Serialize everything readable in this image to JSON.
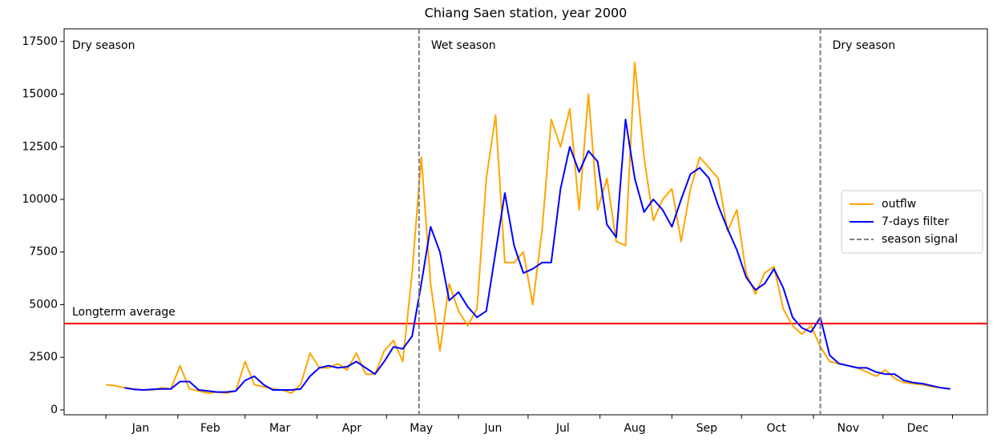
{
  "chart_data": {
    "type": "line",
    "title": "Chiang Saen station, year 2000",
    "x": [
      1,
      5,
      9,
      13,
      17,
      21,
      25,
      29,
      33,
      37,
      41,
      45,
      49,
      53,
      57,
      61,
      65,
      69,
      73,
      77,
      81,
      85,
      89,
      93,
      97,
      101,
      105,
      109,
      113,
      117,
      121,
      125,
      129,
      133,
      137,
      141,
      145,
      149,
      153,
      157,
      161,
      165,
      169,
      173,
      177,
      181,
      185,
      189,
      193,
      197,
      201,
      205,
      209,
      213,
      217,
      221,
      225,
      229,
      233,
      237,
      241,
      245,
      249,
      253,
      257,
      261,
      265,
      269,
      273,
      277,
      281,
      285,
      289,
      293,
      297,
      301,
      305,
      309,
      313,
      317,
      321,
      325,
      329,
      333,
      337,
      341,
      345,
      349,
      353,
      357,
      361,
      365
    ],
    "series": [
      {
        "name": "outflw",
        "color": "orange",
        "values": [
          1200,
          1150,
          1050,
          1000,
          950,
          950,
          1050,
          1000,
          2100,
          1000,
          900,
          800,
          850,
          800,
          900,
          2300,
          1200,
          1100,
          1000,
          950,
          800,
          1200,
          2700,
          2000,
          2000,
          2200,
          1900,
          2700,
          1700,
          1700,
          2800,
          3300,
          2300,
          6500,
          12000,
          6000,
          2800,
          6000,
          4700,
          4000,
          4800,
          11000,
          14000,
          7000,
          7000,
          7500,
          5000,
          8500,
          13800,
          12500,
          14300,
          9500,
          15000,
          9500,
          11000,
          8000,
          7800,
          16500,
          12000,
          9000,
          10000,
          10500,
          8000,
          10500,
          12000,
          11500,
          11000,
          8500,
          9500,
          6500,
          5500,
          6500,
          6800,
          4800,
          4000,
          3600,
          4000,
          3000,
          2300,
          2200,
          2100,
          2000,
          1800,
          1600,
          1900,
          1500,
          1300,
          1250,
          1200,
          1100,
          1050,
          1000
        ]
      },
      {
        "name": "7-days filter",
        "color": "blue",
        "values": [
          null,
          null,
          1050,
          980,
          950,
          980,
          1000,
          1000,
          1350,
          1350,
          950,
          900,
          850,
          850,
          900,
          1400,
          1600,
          1200,
          950,
          950,
          950,
          1000,
          1600,
          2000,
          2100,
          2000,
          2050,
          2300,
          2000,
          1700,
          2300,
          3000,
          2900,
          3500,
          6000,
          8700,
          7500,
          5200,
          5600,
          4900,
          4400,
          4700,
          7500,
          10300,
          7800,
          6500,
          6700,
          7000,
          7000,
          10500,
          12500,
          11300,
          12300,
          11800,
          8800,
          8200,
          13800,
          11000,
          9400,
          10000,
          9500,
          8700,
          10000,
          11200,
          11500,
          11000,
          9700,
          8600,
          7600,
          6300,
          5700,
          6000,
          6700,
          5800,
          4400,
          3900,
          3700,
          4400,
          2600,
          2200,
          2100,
          2000,
          2000,
          1800,
          1700,
          1700,
          1400,
          1300,
          1250,
          1150,
          1050,
          1000
        ]
      }
    ],
    "season_signal": {
      "name": "season signal",
      "x": [
        136,
        309
      ],
      "color": "gray"
    },
    "season_labels": [
      "Dry season",
      "Wet season",
      "Dry season"
    ],
    "average": {
      "label": "Longterm average",
      "value": 4100,
      "color": "red"
    },
    "xlim": [
      -17,
      381
    ],
    "x_tick_marks": [
      1,
      32,
      61,
      92,
      122,
      153,
      183,
      214,
      245,
      275,
      306,
      336,
      366
    ],
    "x_tick_labels": [
      {
        "value": 16,
        "label": "Jan"
      },
      {
        "value": 46,
        "label": "Feb"
      },
      {
        "value": 76,
        "label": "Mar"
      },
      {
        "value": 107,
        "label": "Apr"
      },
      {
        "value": 137,
        "label": "May"
      },
      {
        "value": 168,
        "label": "Jun"
      },
      {
        "value": 198,
        "label": "Jul"
      },
      {
        "value": 229,
        "label": "Aug"
      },
      {
        "value": 260,
        "label": "Sep"
      },
      {
        "value": 290,
        "label": "Oct"
      },
      {
        "value": 321,
        "label": "Nov"
      },
      {
        "value": 351,
        "label": "Dec"
      }
    ],
    "ylim": [
      -230,
      18100
    ],
    "yticks": [
      0,
      2500,
      5000,
      7500,
      10000,
      12500,
      15000,
      17500
    ],
    "legend": "center right"
  }
}
